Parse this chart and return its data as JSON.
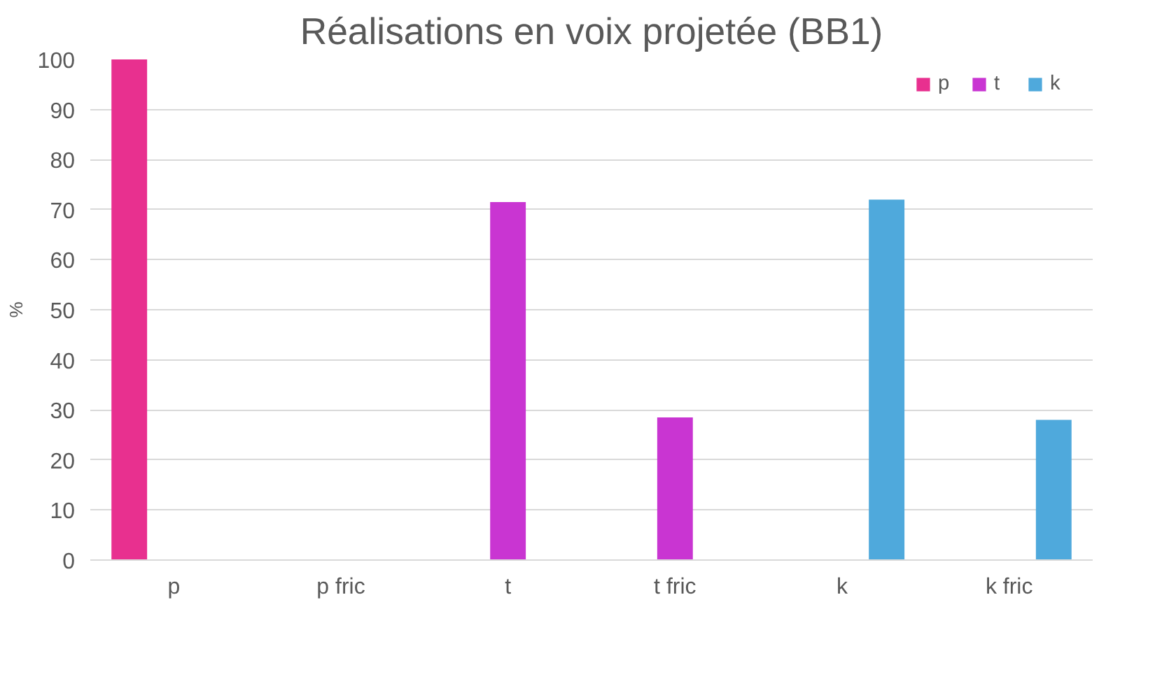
{
  "chart_data": {
    "type": "bar",
    "title": "Réalisations en voix projetée (BB1)",
    "ylabel": "%",
    "categories": [
      "p",
      "p fric",
      "t",
      "t fric",
      "k",
      "k fric"
    ],
    "series": [
      {
        "name": "p",
        "color": "#e8308f",
        "values": [
          100,
          null,
          null,
          null,
          null,
          null
        ]
      },
      {
        "name": "t",
        "color": "#c935d2",
        "values": [
          null,
          null,
          71.5,
          28.5,
          null,
          null
        ]
      },
      {
        "name": "k",
        "color": "#4fa9dc",
        "values": [
          null,
          null,
          null,
          null,
          72,
          28
        ]
      }
    ],
    "ylim": [
      0,
      100
    ],
    "yticks": [
      0,
      10,
      20,
      30,
      40,
      50,
      60,
      70,
      80,
      90,
      100
    ],
    "grid": "y",
    "legend": "top right"
  }
}
